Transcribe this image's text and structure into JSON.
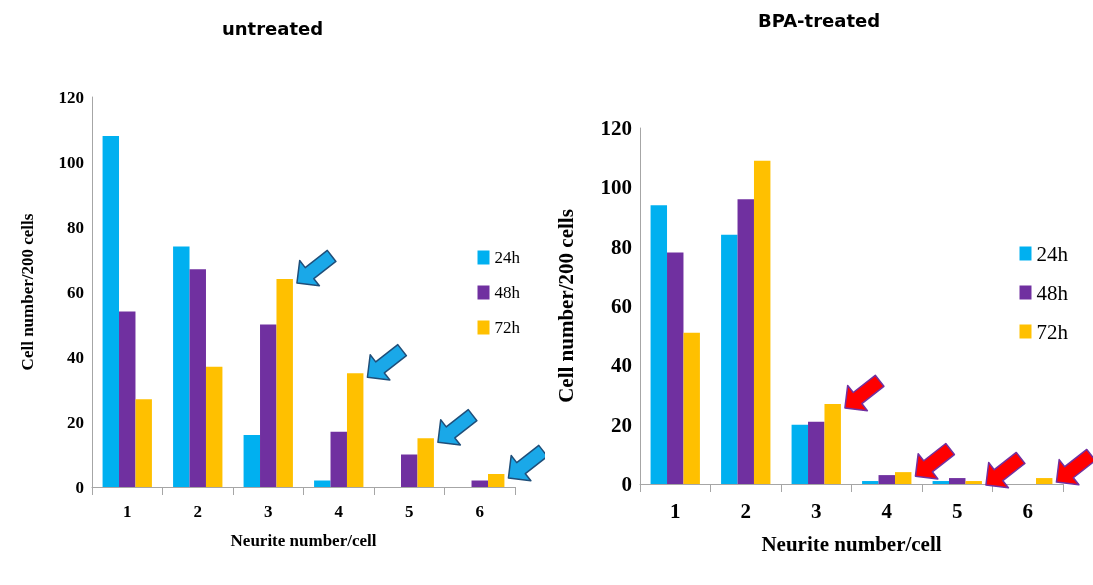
{
  "chart_data": [
    {
      "type": "bar",
      "title": "untreated",
      "xlabel": "Neurite number/cell",
      "ylabel": "Cell number/200 cells",
      "categories": [
        "1",
        "2",
        "3",
        "4",
        "5",
        "6"
      ],
      "ylim": [
        0,
        120
      ],
      "yticks": [
        0,
        20,
        40,
        60,
        80,
        100,
        120
      ],
      "grid": false,
      "legend": "right",
      "series": [
        {
          "name": "24h",
          "color": "#00b0f0",
          "values": [
            108,
            74,
            16,
            2,
            0,
            0
          ]
        },
        {
          "name": "48h",
          "color": "#7030a0",
          "values": [
            54,
            67,
            50,
            17,
            10,
            2
          ]
        },
        {
          "name": "72h",
          "color": "#ffc000",
          "values": [
            27,
            37,
            64,
            35,
            15,
            4
          ]
        }
      ]
    },
    {
      "type": "bar",
      "title": "BPA-treated",
      "xlabel": "Neurite number/cell",
      "ylabel": "Cell number/200 cells",
      "categories": [
        "1",
        "2",
        "3",
        "4",
        "5",
        "6"
      ],
      "ylim": [
        0,
        120
      ],
      "yticks": [
        0,
        20,
        40,
        60,
        80,
        100,
        120
      ],
      "grid": false,
      "legend": "right",
      "series": [
        {
          "name": "24h",
          "color": "#00b0f0",
          "values": [
            94,
            84,
            20,
            1,
            1,
            0
          ]
        },
        {
          "name": "48h",
          "color": "#7030a0",
          "values": [
            78,
            96,
            21,
            3,
            2,
            0
          ]
        },
        {
          "name": "72h",
          "color": "#ffc000",
          "values": [
            51,
            109,
            27,
            4,
            1,
            2
          ]
        }
      ]
    }
  ]
}
